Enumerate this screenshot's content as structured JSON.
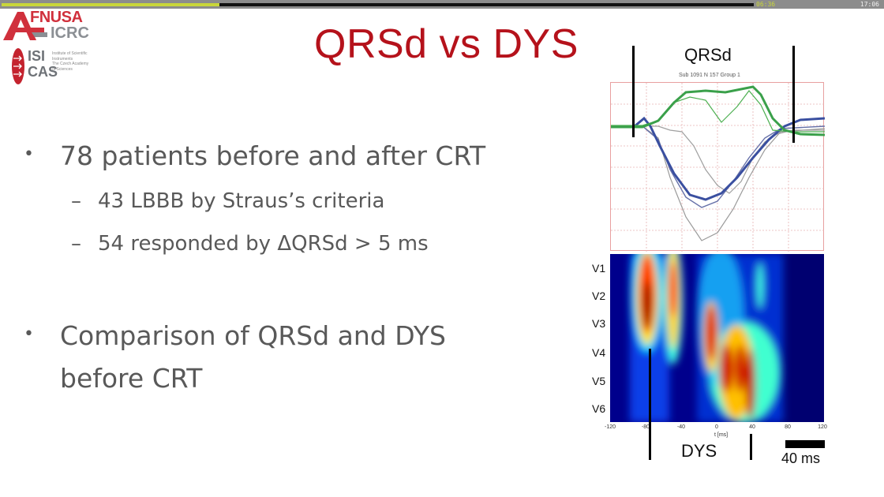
{
  "player": {
    "progress_percent": 29,
    "elapsed": "06:36",
    "clock": "17:06",
    "progress_color": "#c9d63a"
  },
  "logos": {
    "fnusa": "FNUSA",
    "icrc": "ICRC",
    "isi": "ISI",
    "cas": "CAS",
    "isi_subtitle": [
      "Institute of Scientific",
      "Instruments",
      "The Czech Academy",
      "of Sciences"
    ]
  },
  "slide": {
    "title": "QRSd vs DYS",
    "title_color": "#b5121b",
    "bullets": [
      {
        "text": "78 patients before and after CRT",
        "subitems": [
          "43 LBBB by Straus’s criteria",
          "54 responded by ΔQRSd > 5 ms"
        ]
      },
      {
        "text_line1": "Comparison of QRSd and DYS",
        "text_line2": "before CRT"
      }
    ]
  },
  "figure": {
    "qrsd_label": "QRSd",
    "subtitle": "Sub 1091 N 157 Group 1",
    "leads": [
      "V1",
      "V2",
      "V3",
      "V4",
      "V5",
      "V6"
    ],
    "x_ticks": [
      "-120",
      "-80",
      "-40",
      "0",
      "40",
      "80",
      "120"
    ],
    "x_label": "t  [ms]",
    "dys_label": "DYS",
    "scale_label": "40 ms"
  }
}
